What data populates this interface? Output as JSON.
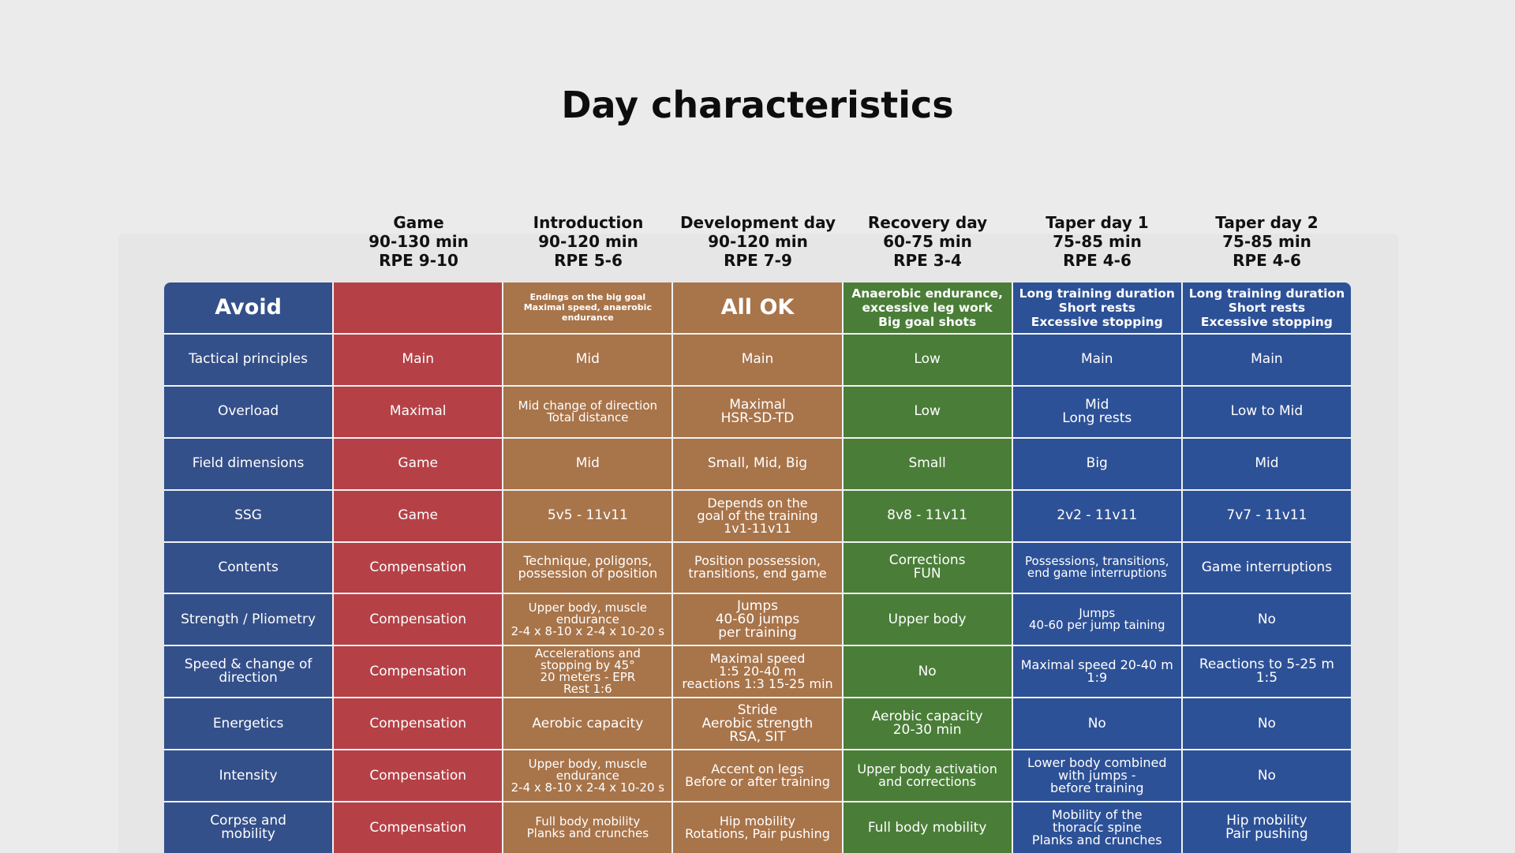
{
  "title": "Day characteristics",
  "colors": {
    "label_column": "#34508a",
    "game": "#b54146",
    "introduction": "#a8744a",
    "development": "#a8744a",
    "recovery": "#4a7e38",
    "taper": "#2d5197"
  },
  "columns": [
    {
      "name": "Game",
      "duration": "90-130 min",
      "rpe": "RPE 9-10"
    },
    {
      "name": "Introduction",
      "duration": "90-120 min",
      "rpe": "RPE 5-6"
    },
    {
      "name": "Development day",
      "duration": "90-120 min",
      "rpe": "RPE 7-9"
    },
    {
      "name": "Recovery day",
      "duration": "60-75 min",
      "rpe": "RPE 3-4"
    },
    {
      "name": "Taper day 1",
      "duration": "75-85 min",
      "rpe": "RPE 4-6"
    },
    {
      "name": "Taper day 2",
      "duration": "75-85 min",
      "rpe": "RPE 4-6"
    }
  ],
  "rows": [
    {
      "label": "Avoid",
      "cells": [
        "",
        "Endings on the big goal\nMaximal speed, anaerobic\nendurance",
        "All OK",
        "Anaerobic endurance,\nexcessive leg work\nBig goal shots",
        "Long training duration\nShort rests\nExcessive stopping",
        "Long training duration\nShort rests\nExcessive stopping"
      ]
    },
    {
      "label": "Tactical principles",
      "cells": [
        "Main",
        "Mid",
        "Main",
        "Low",
        "Main",
        "Main"
      ]
    },
    {
      "label": "Overload",
      "cells": [
        "Maximal",
        "Mid change of direction\nTotal distance",
        "Maximal\nHSR-SD-TD",
        "Low",
        "Mid\nLong rests",
        "Low to Mid"
      ]
    },
    {
      "label": "Field dimensions",
      "cells": [
        "Game",
        "Mid",
        "Small, Mid, Big",
        "Small",
        "Big",
        "Mid"
      ]
    },
    {
      "label": "SSG",
      "cells": [
        "Game",
        "5v5 - 11v11",
        "Depends on the\ngoal of the training\n1v1-11v11",
        "8v8 - 11v11",
        "2v2 - 11v11",
        "7v7 - 11v11"
      ]
    },
    {
      "label": "Contents",
      "cells": [
        "Compensation",
        "Technique, poligons,\npossession of position",
        "Position possession,\ntransitions, end game",
        "Corrections\nFUN",
        "Possessions, transitions,\nend game interruptions",
        "Game interruptions"
      ]
    },
    {
      "label": "Strength / Pliometry",
      "cells": [
        "Compensation",
        "Upper body, muscle\nendurance\n2-4 x 8-10 x 2-4 x 10-20 s",
        "Jumps\n40-60 jumps\nper training",
        "Upper body",
        "Jumps\n40-60 per jump taining",
        "No"
      ]
    },
    {
      "label": "Speed & change of\ndirection",
      "cells": [
        "Compensation",
        "Accelerations and\nstopping by 45°\n20 meters - EPR\nRest 1:6",
        "Maximal speed\n1:5 20-40 m\nreactions 1:3 15-25 min",
        "No",
        "Maximal speed 20-40 m\n1:9",
        "Reactions to 5-25 m\n1:5"
      ]
    },
    {
      "label": "Energetics",
      "cells": [
        "Compensation",
        "Aerobic capacity",
        "Stride\nAerobic strength\nRSA, SIT",
        "Aerobic capacity\n20-30 min",
        "No",
        "No"
      ]
    },
    {
      "label": "Intensity",
      "cells": [
        "Compensation",
        "Upper body, muscle\nendurance\n2-4 x 8-10 x 2-4 x 10-20 s",
        "Accent on legs\nBefore or after training",
        "Upper body activation\nand corrections",
        "Lower body combined\nwith jumps -\nbefore training",
        "No"
      ]
    },
    {
      "label": "Corpse and\nmobility",
      "cells": [
        "Compensation",
        "Full body mobility\nPlanks and crunches",
        "Hip mobility\nRotations, Pair pushing",
        "Full body mobility",
        "Mobility of the\nthoracic spine\nPlanks and crunches",
        "Hip mobility\nPair pushing"
      ]
    }
  ]
}
